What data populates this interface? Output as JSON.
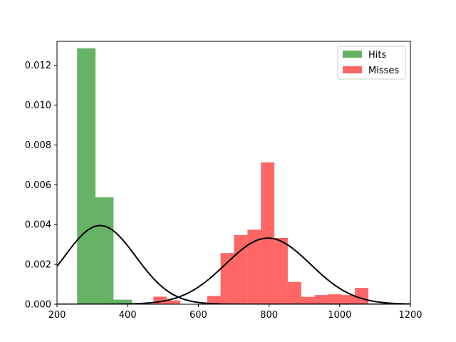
{
  "chart_data": {
    "type": "bar",
    "title": "",
    "xlabel": "",
    "ylabel": "",
    "xlim": [
      200,
      1200
    ],
    "ylim": [
      0,
      0.0132
    ],
    "xticks": [
      200,
      400,
      600,
      800,
      1000,
      1200
    ],
    "xtick_labels": [
      "200",
      "400",
      "600",
      "800",
      "1000",
      "1200"
    ],
    "yticks": [
      0,
      0.002,
      0.004,
      0.006,
      0.008,
      0.01,
      0.012
    ],
    "ytick_labels": [
      "0.000",
      "0.002",
      "0.004",
      "0.006",
      "0.008",
      "0.010",
      "0.012"
    ],
    "grid": false,
    "legend_position": "top-right",
    "series": [
      {
        "name": "Hits",
        "kind": "histogram",
        "color": "#008000",
        "alpha": 0.6,
        "bins": [
          {
            "x0": 257,
            "x1": 309,
            "value": 0.01285
          },
          {
            "x0": 309,
            "x1": 360,
            "value": 0.00537
          },
          {
            "x0": 360,
            "x1": 412,
            "value": 0.00023
          },
          {
            "x0": 412,
            "x1": 464,
            "value": 0.0
          },
          {
            "x0": 464,
            "x1": 515,
            "value": 0.0
          },
          {
            "x0": 515,
            "x1": 567,
            "value": 0.0
          },
          {
            "x0": 567,
            "x1": 619,
            "value": 0.0
          },
          {
            "x0": 619,
            "x1": 670,
            "value": 0.0
          },
          {
            "x0": 670,
            "x1": 722,
            "value": 0.0
          },
          {
            "x0": 722,
            "x1": 774,
            "value": 0.0
          },
          {
            "x0": 774,
            "x1": 825,
            "value": 0.0
          },
          {
            "x0": 825,
            "x1": 877,
            "value": 0.0
          }
        ]
      },
      {
        "name": "Misses",
        "kind": "histogram",
        "color": "#ff0000",
        "alpha": 0.6,
        "bins": [
          {
            "x0": 473,
            "x1": 511,
            "value": 0.00038
          },
          {
            "x0": 511,
            "x1": 549,
            "value": 0.00019
          },
          {
            "x0": 549,
            "x1": 587,
            "value": 0.0
          },
          {
            "x0": 587,
            "x1": 625,
            "value": 0.0
          },
          {
            "x0": 625,
            "x1": 663,
            "value": 0.00042
          },
          {
            "x0": 663,
            "x1": 701,
            "value": 0.00257
          },
          {
            "x0": 701,
            "x1": 739,
            "value": 0.00347
          },
          {
            "x0": 739,
            "x1": 777,
            "value": 0.00374
          },
          {
            "x0": 777,
            "x1": 815,
            "value": 0.00712
          },
          {
            "x0": 815,
            "x1": 853,
            "value": 0.00333
          },
          {
            "x0": 853,
            "x1": 891,
            "value": 0.00112
          },
          {
            "x0": 891,
            "x1": 929,
            "value": 0.00037
          },
          {
            "x0": 929,
            "x1": 967,
            "value": 0.00046
          },
          {
            "x0": 967,
            "x1": 1005,
            "value": 0.0005
          },
          {
            "x0": 1005,
            "x1": 1043,
            "value": 0.00046
          },
          {
            "x0": 1043,
            "x1": 1081,
            "value": 0.00082
          }
        ]
      },
      {
        "name": "",
        "kind": "normal-curve",
        "color": "#000000",
        "mean": 322,
        "std": 101,
        "peak": 0.00395
      },
      {
        "name": "",
        "kind": "normal-curve",
        "color": "#000000",
        "mean": 797,
        "std": 120,
        "peak": 0.00332
      }
    ]
  }
}
